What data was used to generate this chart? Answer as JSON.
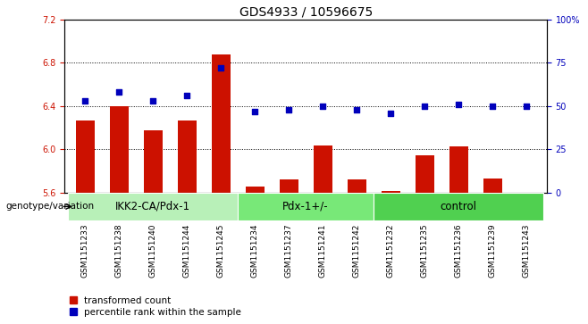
{
  "title": "GDS4933 / 10596675",
  "samples": [
    "GSM1151233",
    "GSM1151238",
    "GSM1151240",
    "GSM1151244",
    "GSM1151245",
    "GSM1151234",
    "GSM1151237",
    "GSM1151241",
    "GSM1151242",
    "GSM1151232",
    "GSM1151235",
    "GSM1151236",
    "GSM1151239",
    "GSM1151243"
  ],
  "bar_values": [
    6.27,
    6.4,
    6.18,
    6.27,
    6.88,
    5.66,
    5.72,
    6.04,
    5.72,
    5.62,
    5.95,
    6.03,
    5.73,
    5.57
  ],
  "dot_values": [
    53,
    58,
    53,
    56,
    72,
    47,
    48,
    50,
    48,
    46,
    50,
    51,
    50,
    50
  ],
  "groups": [
    {
      "label": "IKK2-CA/Pdx-1",
      "count": 5,
      "color": "#b8f0b8"
    },
    {
      "label": "Pdx-1+/-",
      "count": 4,
      "color": "#78e878"
    },
    {
      "label": "control",
      "count": 5,
      "color": "#50d050"
    }
  ],
  "group_starts": [
    0,
    5,
    9
  ],
  "group_ends": [
    5,
    9,
    14
  ],
  "ylim_left": [
    5.6,
    7.2
  ],
  "ylim_right": [
    0,
    100
  ],
  "yticks_left": [
    5.6,
    6.0,
    6.4,
    6.8,
    7.2
  ],
  "yticks_right": [
    0,
    25,
    50,
    75,
    100
  ],
  "grid_yticks": [
    6.0,
    6.4,
    6.8
  ],
  "bar_color": "#cc1100",
  "dot_color": "#0000bb",
  "background_color": "#ffffff",
  "xtick_bg_color": "#cccccc",
  "label_color_left": "#cc1100",
  "label_color_right": "#0000bb",
  "genotype_label": "genotype/variation",
  "legend_items": [
    "transformed count",
    "percentile rank within the sample"
  ],
  "bar_width": 0.55,
  "title_fontsize": 10,
  "tick_fontsize": 7,
  "xtick_fontsize": 6.5,
  "group_label_fontsize": 8.5,
  "legend_fontsize": 7.5
}
